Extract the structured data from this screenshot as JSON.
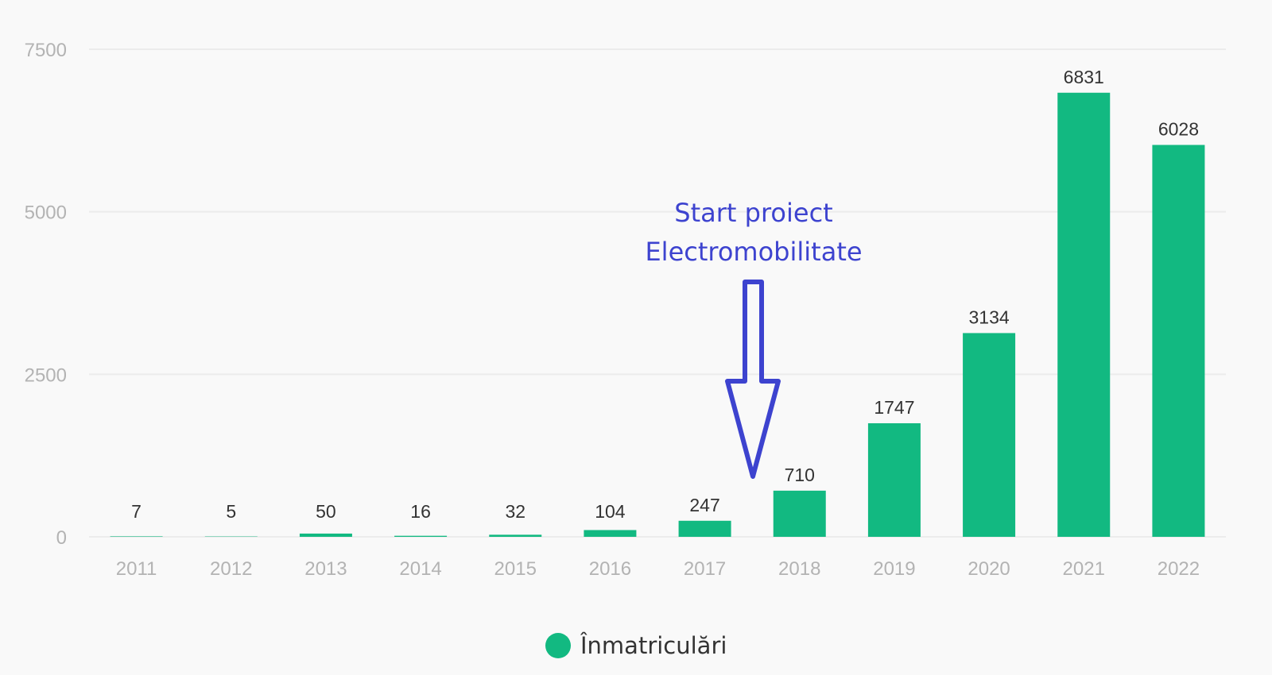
{
  "chart_data": {
    "type": "bar",
    "categories": [
      "2011",
      "2012",
      "2013",
      "2014",
      "2015",
      "2016",
      "2017",
      "2018",
      "2019",
      "2020",
      "2021",
      "2022"
    ],
    "series": [
      {
        "name": "Înmatriculări",
        "values": [
          7,
          5,
          50,
          16,
          32,
          104,
          247,
          710,
          1747,
          3134,
          6831,
          6028
        ],
        "color": "#12b981"
      }
    ],
    "ylim": [
      0,
      7500
    ],
    "yticks": [
      0,
      2500,
      5000,
      7500
    ],
    "grid": true,
    "legend_position": "bottom-center",
    "annotation": {
      "lines": [
        "Start proiect",
        "Electromobilitate"
      ],
      "color": "#3d43cf",
      "points_between": [
        "2017",
        "2018"
      ]
    }
  }
}
